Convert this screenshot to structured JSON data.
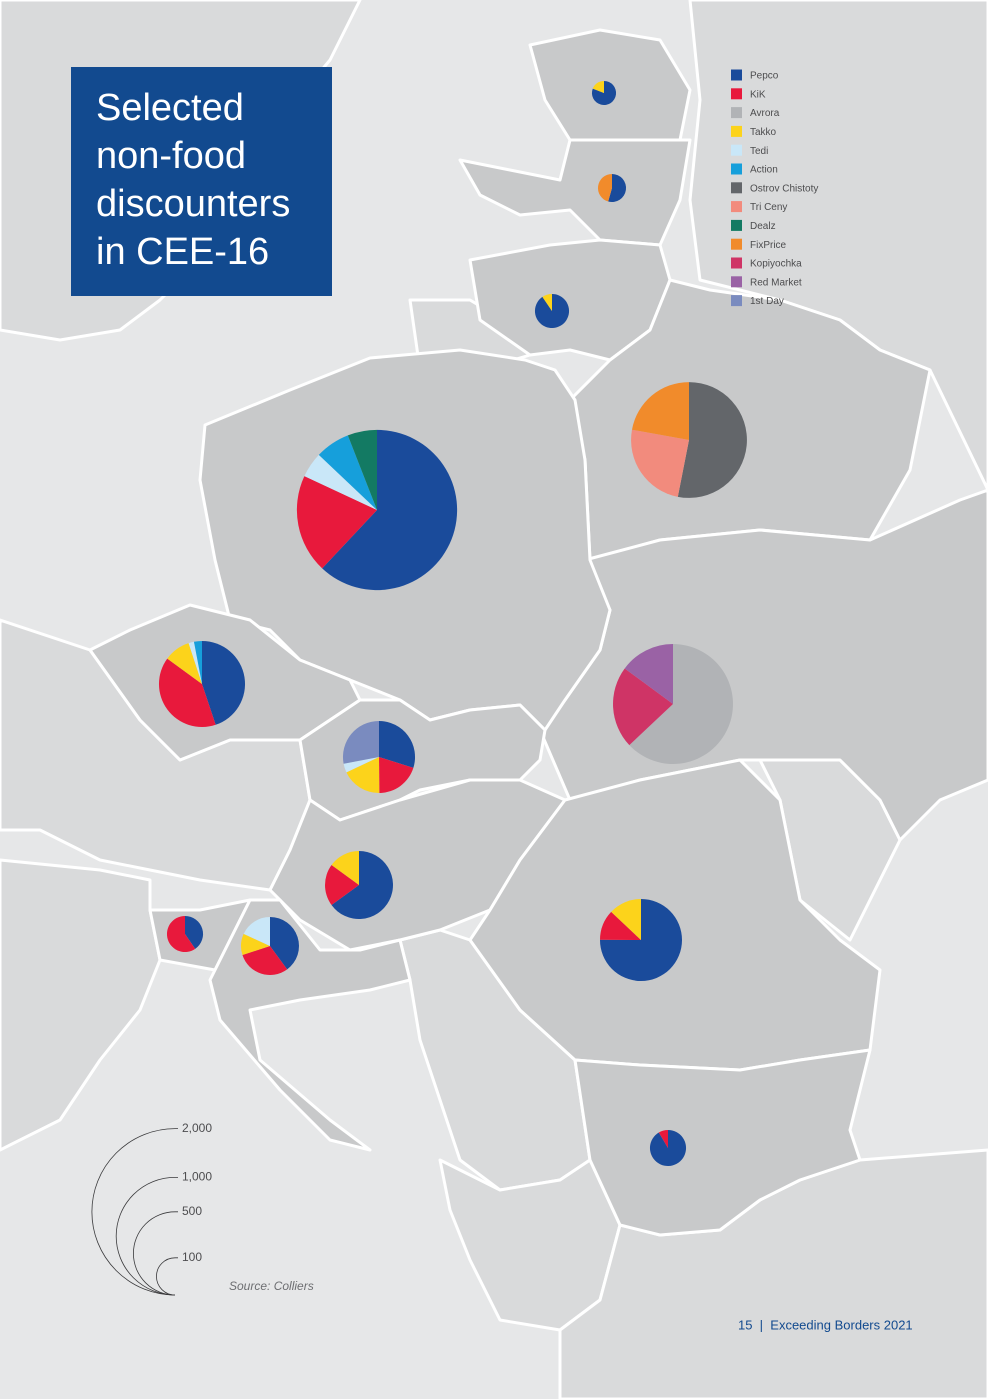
{
  "chart_data": {
    "type": "pie-map",
    "title_lines": [
      "Selected",
      "non-food",
      "discounters",
      "in CEE-16"
    ],
    "brands": [
      {
        "name": "Pepco",
        "color": "#1a4b9b"
      },
      {
        "name": "KiK",
        "color": "#e8193c"
      },
      {
        "name": "Avrora",
        "color": "#b1b3b6"
      },
      {
        "name": "Takko",
        "color": "#fcd31b"
      },
      {
        "name": "Tedi",
        "color": "#c9e7f8"
      },
      {
        "name": "Action",
        "color": "#169fdb"
      },
      {
        "name": "Ostrov Chistoty",
        "color": "#63666a"
      },
      {
        "name": "Tri Ceny",
        "color": "#f28b7d"
      },
      {
        "name": "Dealz",
        "color": "#137a63"
      },
      {
        "name": "FixPrice",
        "color": "#f18b2b"
      },
      {
        "name": "Kopiyochka",
        "color": "#cf3466"
      },
      {
        "name": "Red Market",
        "color": "#9a62a5"
      },
      {
        "name": "1st Day",
        "color": "#7a8bbf"
      }
    ],
    "pies": [
      {
        "values": [
          34,
          0,
          0,
          8,
          0,
          0,
          0,
          0,
          0,
          0,
          0,
          0,
          0
        ]
      },
      {
        "values": [
          31,
          0,
          0,
          0,
          0,
          0,
          0,
          0,
          0,
          26,
          0,
          0,
          0
        ]
      },
      {
        "values": [
          76,
          0,
          0,
          8,
          0,
          0,
          0,
          0,
          0,
          0,
          0,
          0,
          0
        ]
      },
      {
        "values": [
          0,
          0,
          0,
          0,
          0,
          0,
          515,
          240,
          0,
          215,
          0,
          0,
          0
        ]
      },
      {
        "values": [
          1150,
          370,
          0,
          0,
          95,
          130,
          0,
          0,
          110,
          0,
          0,
          0,
          0
        ]
      },
      {
        "values": [
          240,
          215,
          0,
          53,
          11,
          16,
          0,
          0,
          0,
          0,
          0,
          0,
          0
        ]
      },
      {
        "values": [
          0,
          0,
          655,
          0,
          0,
          0,
          0,
          0,
          0,
          0,
          230,
          155,
          0
        ]
      },
      {
        "values": [
          112,
          75,
          0,
          68,
          15,
          0,
          0,
          0,
          0,
          0,
          0,
          0,
          105
        ]
      },
      {
        "values": [
          217,
          67,
          0,
          50,
          0,
          0,
          0,
          0,
          0,
          0,
          0,
          0,
          0
        ]
      },
      {
        "values": [
          365,
          58,
          0,
          63,
          0,
          0,
          0,
          0,
          0,
          0,
          0,
          0,
          0
        ]
      },
      {
        "values": [
          38,
          56,
          0,
          0,
          0,
          0,
          0,
          0,
          0,
          0,
          0,
          0,
          0
        ]
      },
      {
        "values": [
          97,
          73,
          0,
          29,
          44,
          0,
          0,
          0,
          0,
          0,
          0,
          0,
          0
        ]
      },
      {
        "values": [
          86,
          8,
          0,
          0,
          0,
          0,
          0,
          0,
          0,
          0,
          0,
          0,
          0
        ]
      }
    ],
    "size_legend": [
      {
        "value": 2000,
        "label": "2,000"
      },
      {
        "value": 1000,
        "label": "1,000"
      },
      500,
      100
    ],
    "source": "Source: Colliers",
    "footer": "15  |  Exceeding Borders 2021"
  }
}
